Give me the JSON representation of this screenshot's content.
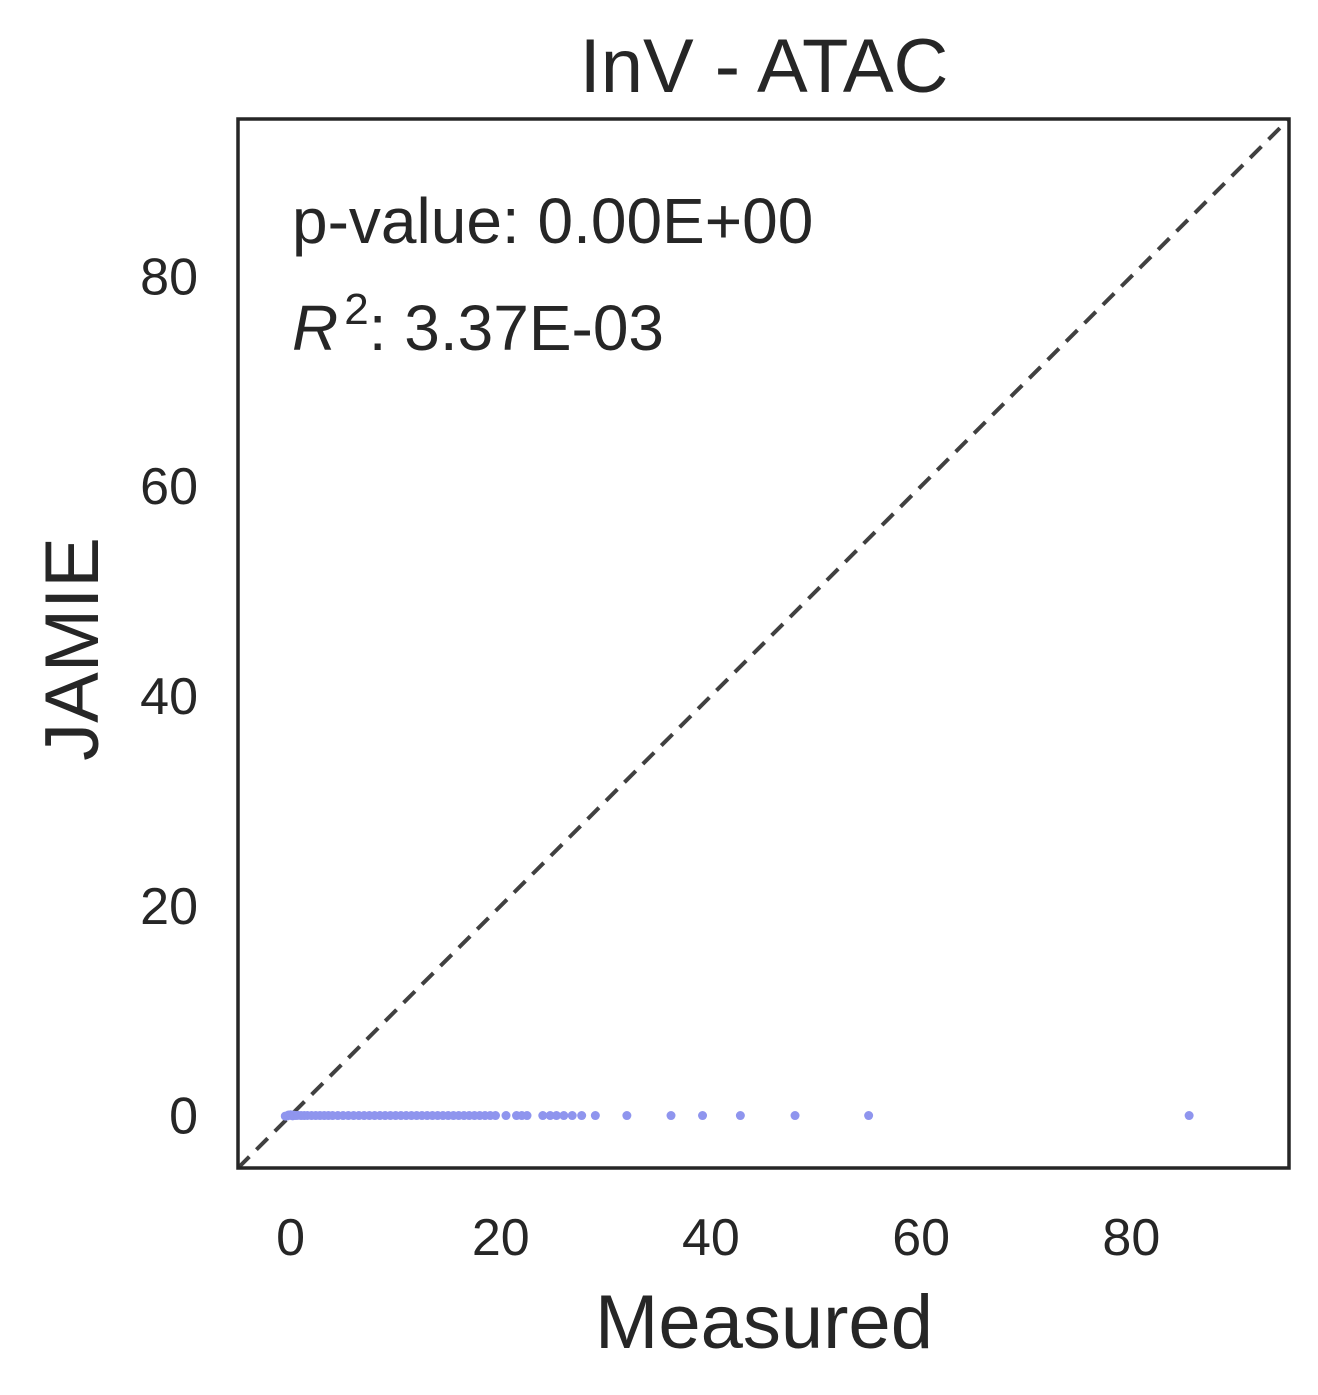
{
  "chart_data": {
    "type": "scatter",
    "title": "InV - ATAC",
    "xlabel": "Measured",
    "ylabel": "JAMIE",
    "xlim": [
      -5,
      95
    ],
    "ylim": [
      -5,
      95
    ],
    "xticks": [
      0,
      20,
      40,
      60,
      80
    ],
    "yticks": [
      0,
      20,
      40,
      60,
      80
    ],
    "xtick_labels": [
      "0",
      "20",
      "40",
      "60",
      "80"
    ],
    "ytick_labels": [
      "0",
      "20",
      "40",
      "60",
      "80"
    ],
    "grid": false,
    "reference_line": {
      "from": [
        -5,
        -5
      ],
      "to": [
        95,
        95
      ],
      "style": "dashed",
      "color": "#404040"
    },
    "point_color": "#8f95ee",
    "annotations": {
      "pvalue": "p-value: 0.00E+00",
      "r2_symbol": "R",
      "r2_exponent": "2",
      "r2_value": ": 3.37E-03"
    },
    "series": [
      {
        "x": [
          -0.5,
          -0.3,
          -0.2,
          0,
          0.1,
          0.2,
          0.3,
          0.5,
          0.7,
          1.0,
          1.3,
          1.6,
          2.0,
          2.4,
          2.8,
          3.2,
          3.6,
          4.0,
          4.5,
          5.0,
          5.5,
          6.0,
          6.5,
          7.0,
          7.5,
          8.0,
          8.5,
          9.0,
          9.5,
          10.0,
          10.5,
          11.0,
          11.5,
          12.0,
          12.5,
          13.0,
          13.5,
          14.0,
          14.5,
          15.0,
          15.5,
          16.0,
          16.5,
          17.0,
          17.5,
          18.0,
          18.5,
          19.0,
          19.5,
          20.5,
          21.5,
          22.0,
          22.5,
          24.0,
          24.7,
          25.3,
          26.0,
          26.8,
          27.7,
          29.0,
          32.0,
          36.2,
          39.2,
          42.8,
          48.0,
          55.0,
          85.5
        ],
        "y": [
          -0.05,
          -0.04,
          0.05,
          0.08,
          0.0,
          -0.03,
          0.04,
          0.0,
          0.02,
          0.0,
          0.0,
          0.01,
          0.0,
          0.0,
          0.0,
          0.0,
          0.0,
          0.0,
          0.0,
          0.0,
          0.0,
          0.0,
          0.0,
          0.0,
          0.0,
          0.0,
          0.0,
          0.0,
          0.0,
          0.0,
          0.0,
          0.0,
          0.0,
          0.0,
          0.0,
          0.0,
          0.0,
          0.0,
          0.0,
          0.0,
          0.0,
          0.0,
          0.0,
          0.0,
          0.0,
          0.0,
          0.0,
          0.0,
          0.0,
          0.0,
          0.0,
          0.0,
          0.0,
          0.0,
          0.0,
          0.0,
          0.0,
          0.0,
          0.0,
          0.0,
          0.0,
          0.0,
          0.0,
          0.0,
          0.0,
          0.0,
          0.0
        ]
      }
    ]
  }
}
